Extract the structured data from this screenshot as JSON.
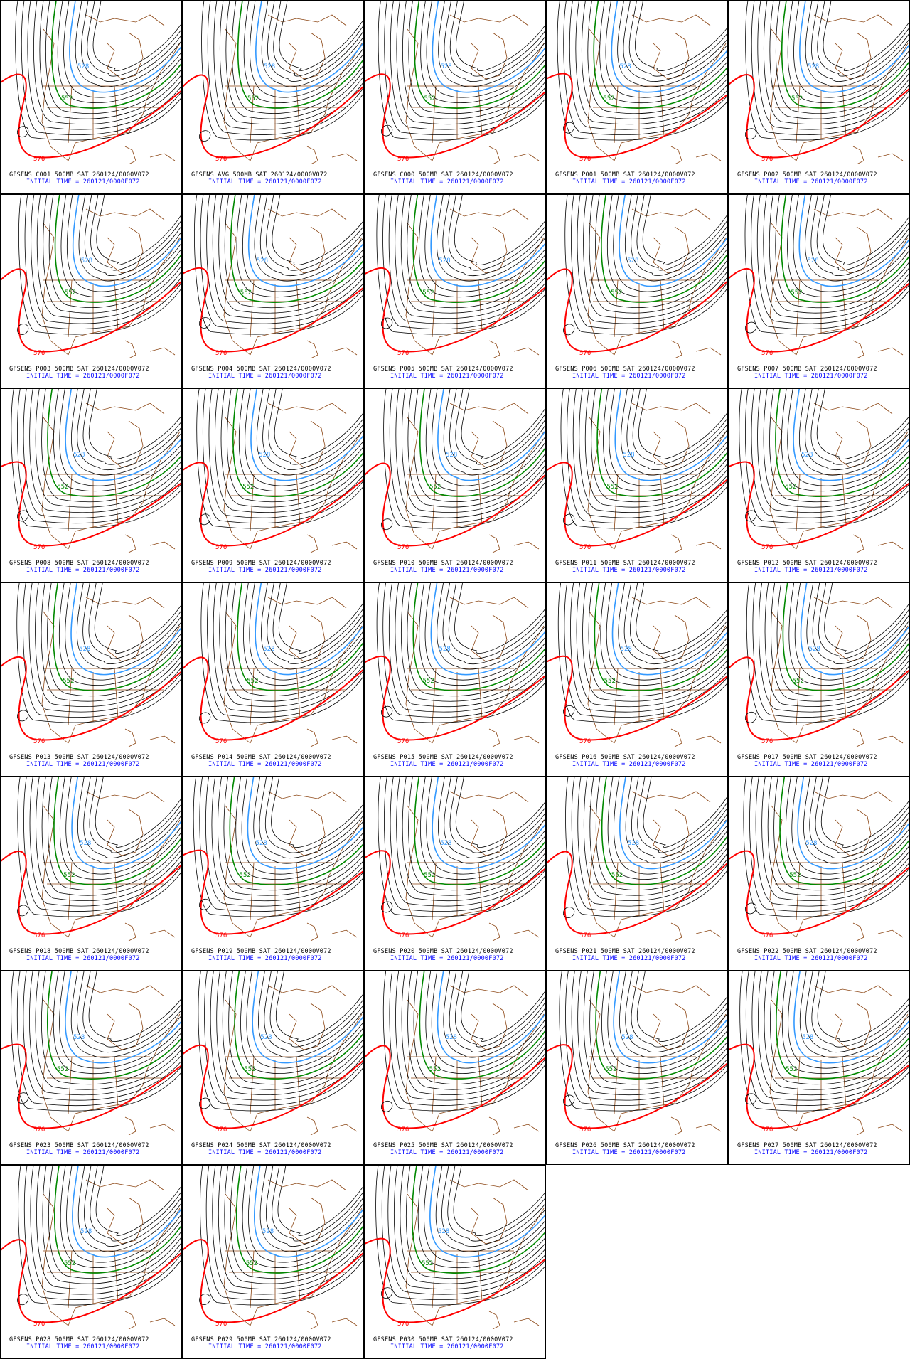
{
  "grid": {
    "columns": 5,
    "rows": 7
  },
  "product": "500MB SAT 260124/0000V072",
  "initial_time": "INITIAL TIME = 260121/0000F072",
  "members": [
    "C001",
    "AVG",
    "C000",
    "P001",
    "P002",
    "P003",
    "P004",
    "P005",
    "P006",
    "P007",
    "P008",
    "P009",
    "P010",
    "P011",
    "P012",
    "P013",
    "P014",
    "P015",
    "P016",
    "P017",
    "P018",
    "P019",
    "P020",
    "P021",
    "P022",
    "P023",
    "P024",
    "P025",
    "P026",
    "P027",
    "P028",
    "P029",
    "P030"
  ],
  "panels": [],
  "contour_labels": {
    "blue": "528",
    "green": "552",
    "red": "576"
  },
  "colors": {
    "contour": "#000000",
    "blue": "#3399ff",
    "green": "#008800",
    "red": "#ff0000",
    "coast": "#8b4513",
    "label": "#0000ff"
  }
}
